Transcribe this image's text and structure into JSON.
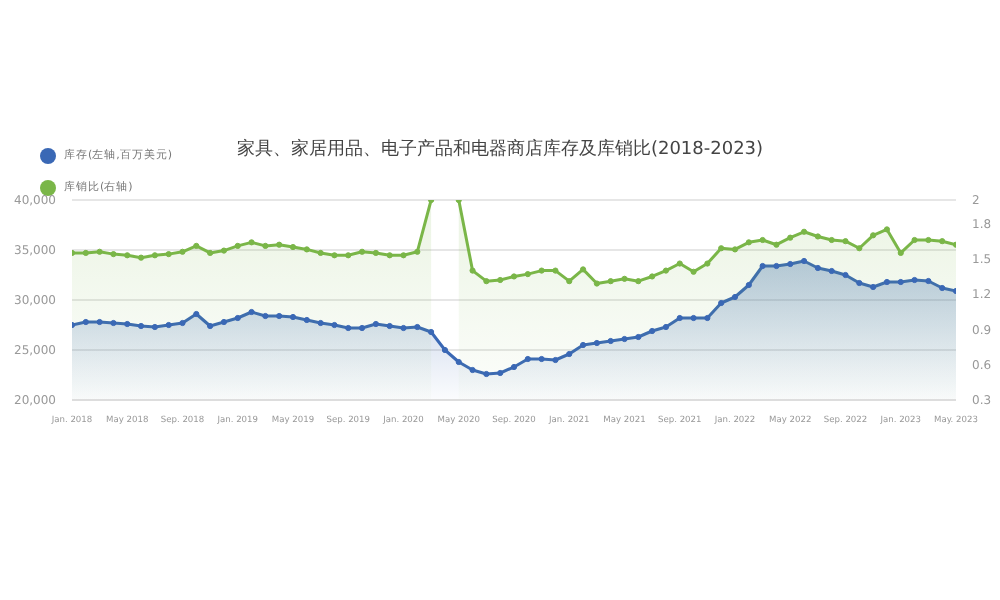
{
  "chart_data": {
    "type": "area",
    "title": "家具、家居用品、电子产品和电器商店库存及库销比(2018-2023)",
    "x": [
      "2018-01",
      "2018-02",
      "2018-03",
      "2018-04",
      "2018-05",
      "2018-06",
      "2018-07",
      "2018-08",
      "2018-09",
      "2018-10",
      "2018-11",
      "2018-12",
      "2019-01",
      "2019-02",
      "2019-03",
      "2019-04",
      "2019-05",
      "2019-06",
      "2019-07",
      "2019-08",
      "2019-09",
      "2019-10",
      "2019-11",
      "2019-12",
      "2020-01",
      "2020-02",
      "2020-03",
      "2020-04",
      "2020-05",
      "2020-06",
      "2020-07",
      "2020-08",
      "2020-09",
      "2020-10",
      "2020-11",
      "2020-12",
      "2021-01",
      "2021-02",
      "2021-03",
      "2021-04",
      "2021-05",
      "2021-06",
      "2021-07",
      "2021-08",
      "2021-09",
      "2021-10",
      "2021-11",
      "2021-12",
      "2022-01",
      "2022-02",
      "2022-03",
      "2022-04",
      "2022-05",
      "2022-06",
      "2022-07",
      "2022-08",
      "2022-09",
      "2022-10",
      "2022-11",
      "2022-12",
      "2023-01",
      "2023-02",
      "2023-03",
      "2023-04",
      "2023-05"
    ],
    "series": [
      {
        "name": "库存(左轴,百万美元)",
        "color": "#3a68b5",
        "values": [
          27500,
          27800,
          27800,
          27700,
          27600,
          27400,
          27300,
          27500,
          27700,
          28600,
          27400,
          27800,
          28200,
          28800,
          28400,
          28400,
          28300,
          28000,
          27700,
          27500,
          27200,
          27200,
          27600,
          27400,
          27200,
          27300,
          26800,
          25000,
          23800,
          23000,
          22600,
          22700,
          23300,
          24100,
          24100,
          24000,
          24600,
          25500,
          25700,
          25900,
          26100,
          26300,
          26900,
          27300,
          28200,
          28200,
          28200,
          29700,
          30300,
          31500,
          33400,
          33400,
          33600,
          33900,
          33200,
          32900,
          32500,
          31700,
          31300,
          31800,
          31800,
          32000,
          31900,
          31200,
          30900
        ]
      },
      {
        "name": "库销比(右轴)",
        "color": "#7ab648",
        "axis": "y2",
        "values": [
          1.55,
          1.55,
          1.56,
          1.54,
          1.53,
          1.51,
          1.53,
          1.54,
          1.56,
          1.61,
          1.55,
          1.57,
          1.61,
          1.64,
          1.61,
          1.62,
          1.6,
          1.58,
          1.55,
          1.53,
          1.53,
          1.56,
          1.55,
          1.53,
          1.53,
          1.56,
          2.0,
          null,
          2.0,
          1.4,
          1.31,
          1.32,
          1.35,
          1.37,
          1.4,
          1.4,
          1.31,
          1.41,
          1.29,
          1.31,
          1.33,
          1.31,
          1.35,
          1.4,
          1.46,
          1.39,
          1.46,
          1.59,
          1.58,
          1.64,
          1.66,
          1.62,
          1.68,
          1.73,
          1.69,
          1.66,
          1.65,
          1.59,
          1.7,
          1.75,
          1.55,
          1.66,
          1.66,
          1.65,
          1.62
        ]
      }
    ],
    "xlim": [
      "2018-01",
      "2023-05"
    ],
    "xticks": [
      {
        "value": "2018-01",
        "label": "Jan. 2018"
      },
      {
        "value": "2018-05",
        "label": "May 2018"
      },
      {
        "value": "2018-09",
        "label": "Sep. 2018"
      },
      {
        "value": "2019-01",
        "label": "Jan. 2019"
      },
      {
        "value": "2019-05",
        "label": "May 2019"
      },
      {
        "value": "2019-09",
        "label": "Sep. 2019"
      },
      {
        "value": "2020-01",
        "label": "Jan. 2020"
      },
      {
        "value": "2020-05",
        "label": "May 2020"
      },
      {
        "value": "2020-09",
        "label": "Sep. 2020"
      },
      {
        "value": "2021-01",
        "label": "Jan. 2021"
      },
      {
        "value": "2021-05",
        "label": "May 2021"
      },
      {
        "value": "2021-09",
        "label": "Sep. 2021"
      },
      {
        "value": "2022-01",
        "label": "Jan. 2022"
      },
      {
        "value": "2022-05",
        "label": "May 2022"
      },
      {
        "value": "2022-09",
        "label": "Sep. 2022"
      },
      {
        "value": "2023-01",
        "label": "Jan. 2023"
      },
      {
        "value": "2023-05",
        "label": "May. 2023"
      }
    ],
    "ylim": [
      20000,
      40000
    ],
    "yticks": [
      {
        "value": 20000,
        "label": "20,000"
      },
      {
        "value": 25000,
        "label": "25,000"
      },
      {
        "value": 30000,
        "label": "30,000"
      },
      {
        "value": 35000,
        "label": "35,000"
      },
      {
        "value": 40000,
        "label": "40,000"
      }
    ],
    "y2lim": [
      0.3,
      2
    ],
    "y2ticks": [
      0.3,
      0.6,
      0.9,
      1.2,
      1.5,
      1.8,
      2
    ],
    "grid": "y",
    "legend": "top left",
    "marker": "circle",
    "line_style": "solid"
  }
}
